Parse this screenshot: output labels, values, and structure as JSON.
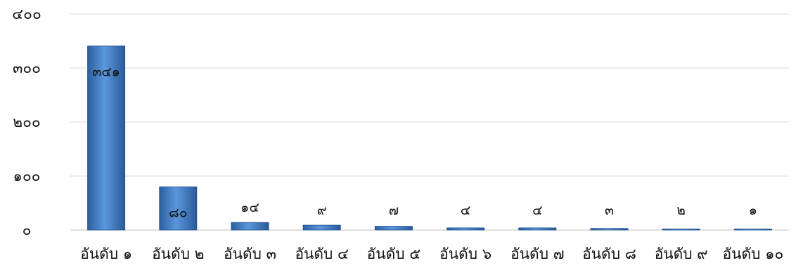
{
  "chart_data": {
    "type": "bar",
    "categories": [
      "อันดับ ๑",
      "อันดับ ๒",
      "อันดับ ๓",
      "อันดับ ๔",
      "อันดับ ๕",
      "อันดับ ๖",
      "อันดับ ๗",
      "อันดับ ๘",
      "อันดับ ๙",
      "อันดับ ๑๐"
    ],
    "values": [
      341,
      80,
      14,
      9,
      7,
      4,
      4,
      3,
      2,
      1
    ],
    "data_labels": [
      "๓๔๑",
      "๘๐",
      "๑๔",
      "๙",
      "๗",
      "๔",
      "๔",
      "๓",
      "๒",
      "๑"
    ],
    "ylim": [
      0,
      400
    ],
    "yticks": [
      0,
      100,
      200,
      300,
      400
    ],
    "ytick_labels": [
      "๐",
      "๑๐๐",
      "๒๐๐",
      "๓๐๐",
      "๔๐๐"
    ],
    "grid": true,
    "bar_color": "#4a86cf",
    "bar_color_dark": "#1f4f8f",
    "title": "",
    "xlabel": "",
    "ylabel": ""
  }
}
